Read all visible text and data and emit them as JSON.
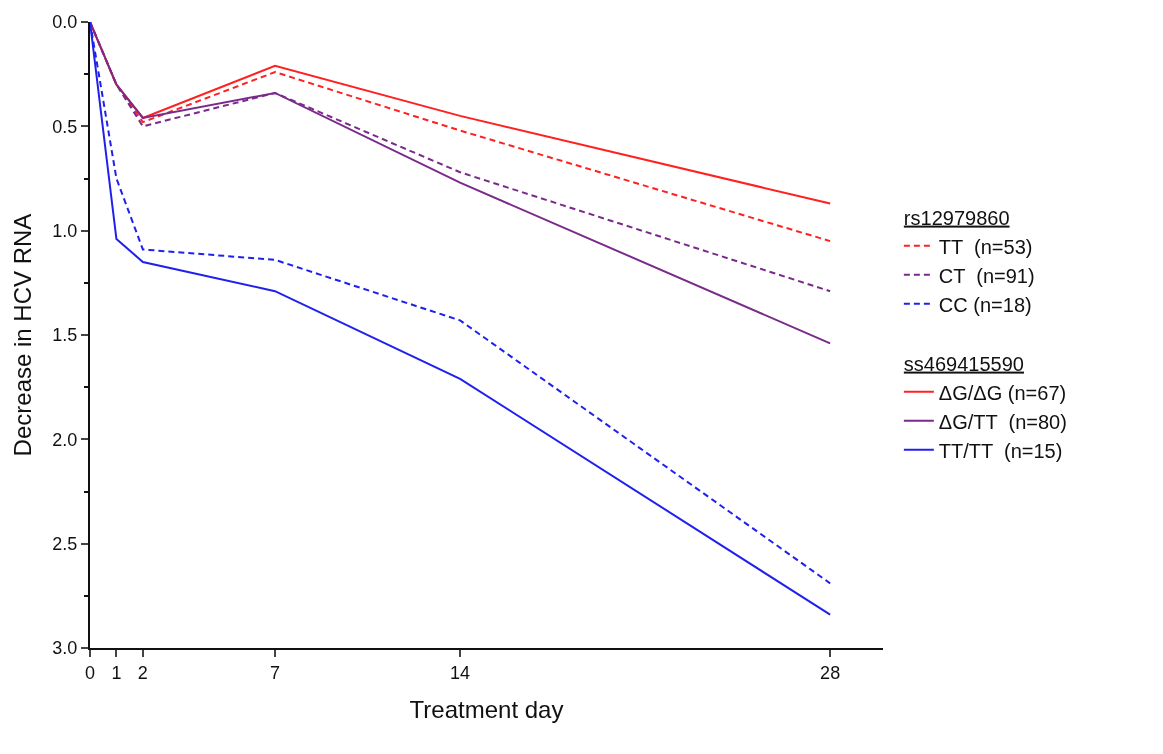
{
  "chart_data": {
    "type": "line",
    "xlabel": "Treatment day",
    "ylabel": "Decrease in HCV RNA",
    "x": [
      0,
      1,
      2,
      7,
      14,
      28
    ],
    "xlim": [
      0,
      30
    ],
    "xticks": [
      0,
      1,
      2,
      7,
      14,
      28
    ],
    "ylim": [
      3.0,
      0.0
    ],
    "yticks": [
      {
        "value": 0,
        "label": "0.0"
      },
      {
        "value": 0.5,
        "label": "0.5"
      },
      {
        "value": 1,
        "label": "1.0"
      },
      {
        "value": 1.5,
        "label": "1.5"
      },
      {
        "value": 2,
        "label": "2.0"
      },
      {
        "value": 2.5,
        "label": "2.5"
      },
      {
        "value": 3,
        "label": "3.0"
      }
    ],
    "grid": false,
    "legend": "right",
    "marker": "none",
    "legend_title": "rs12979860",
    "annotations": [
      "ss469415590"
    ],
    "series": [
      {
        "name": "TT  (n=53)",
        "color": "#ff2020",
        "line_style": "dashed",
        "values": [
          0,
          0.3,
          0.48,
          0.24,
          0.52,
          1.05
        ]
      },
      {
        "name": "CT  (n=91)",
        "color": "#7a2a8a",
        "line_style": "dashed",
        "values": [
          0,
          0.3,
          0.5,
          0.34,
          0.72,
          1.29
        ]
      },
      {
        "name": "CC (n=18)",
        "color": "#2020ee",
        "line_style": "dashed",
        "values": [
          0,
          0.75,
          1.09,
          1.14,
          1.43,
          2.69
        ]
      },
      {
        "name": "ΔG/ΔG (n=67)",
        "color": "#ff2020",
        "line_style": "solid",
        "values": [
          0,
          0.3,
          0.46,
          0.21,
          0.45,
          0.87
        ]
      },
      {
        "name": "ΔG/TT  (n=80)",
        "color": "#7a2a8a",
        "line_style": "solid",
        "values": [
          0,
          0.3,
          0.46,
          0.34,
          0.77,
          1.54
        ]
      },
      {
        "name": "TT/TT  (n=15)",
        "color": "#2020ee",
        "line_style": "solid",
        "values": [
          0,
          1.04,
          1.15,
          1.29,
          1.71,
          2.84
        ]
      }
    ]
  }
}
